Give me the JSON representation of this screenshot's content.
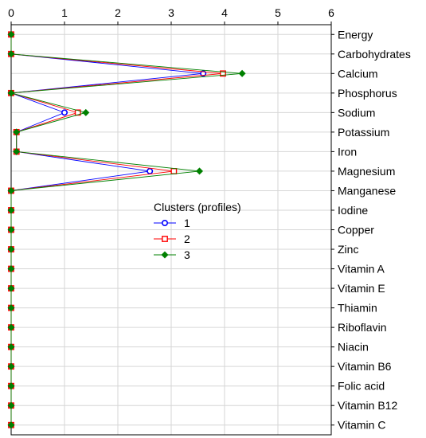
{
  "chart_data": {
    "type": "line",
    "orientation": "horizontal",
    "title": "",
    "xlabel": "",
    "ylabel": "",
    "xlim": [
      0,
      6
    ],
    "x_ticks": [
      "0",
      "1",
      "2",
      "3",
      "4",
      "5",
      "6"
    ],
    "x_axis_position": "top",
    "category_axis_position": "right",
    "grid": true,
    "categories": [
      "Energy",
      "Carbohydrates",
      "Calcium",
      "Phosphorus",
      "Sodium",
      "Potassium",
      "Iron",
      "Magnesium",
      "Manganese",
      "Iodine",
      "Copper",
      "Zinc",
      "Vitamin A",
      "Vitamin E",
      "Thiamin",
      "Riboflavin",
      "Niacin",
      "Vitamin B6",
      "Folic acid",
      "Vitamin B12",
      "Vitamin C"
    ],
    "series": [
      {
        "name": "1",
        "color": "#0000ff",
        "marker": "circle",
        "values": [
          0,
          0,
          3.6,
          0,
          1.0,
          0.1,
          0.1,
          2.6,
          0,
          0,
          0,
          0,
          0,
          0,
          0,
          0,
          0,
          0,
          0,
          0,
          0
        ]
      },
      {
        "name": "2",
        "color": "#ff0000",
        "marker": "square",
        "values": [
          0,
          0,
          3.97,
          0,
          1.25,
          0.1,
          0.1,
          3.05,
          0,
          0,
          0,
          0,
          0,
          0,
          0,
          0,
          0,
          0,
          0,
          0,
          0
        ]
      },
      {
        "name": "3",
        "color": "#008000",
        "marker": "diamond",
        "values": [
          0,
          0,
          4.33,
          0,
          1.4,
          0.1,
          0.1,
          3.53,
          0,
          0,
          0,
          0,
          0,
          0,
          0,
          0,
          0,
          0,
          0,
          0,
          0
        ]
      }
    ],
    "legend": {
      "title": "Clusters (profiles)",
      "placement": "center"
    }
  }
}
